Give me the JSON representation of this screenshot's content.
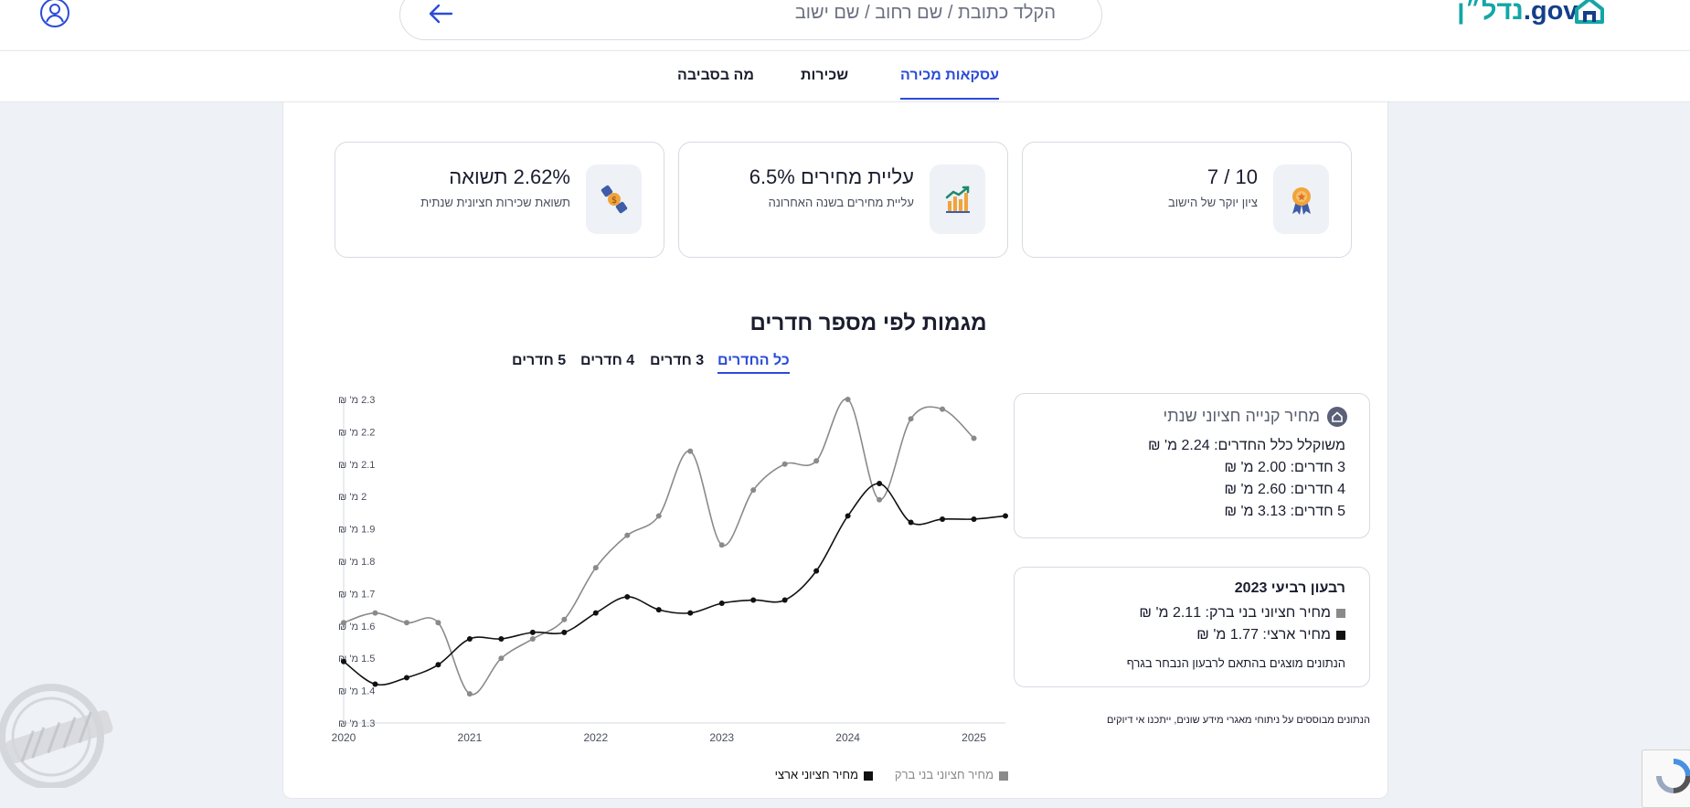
{
  "header": {
    "search_placeholder": "הקלד כתובת / שם רחוב / שם ישוב",
    "logo_hebrew": "נדל״ן",
    "logo_gov": ".gov"
  },
  "tabs": [
    {
      "label": "עסקאות מכירה",
      "active": true
    },
    {
      "label": "שכירות",
      "active": false
    },
    {
      "label": "מה בסביבה",
      "active": false
    }
  ],
  "stats": [
    {
      "title": "10 / 7",
      "subtitle": "ציון יוקר של הישוב",
      "icon": "award-ribbon-icon"
    },
    {
      "title": "עליית מחירים 6.5%",
      "subtitle": "עליית מחירים בשנה האחרונה",
      "icon": "chart-growth-icon"
    },
    {
      "title": "2.62% תשואה",
      "subtitle": "תשואת שכירות חציונית שנתית",
      "icon": "money-hand-icon"
    }
  ],
  "section_title": "מגמות לפי מספר חדרים",
  "room_tabs": [
    {
      "label": "כל החדרים",
      "active": true
    },
    {
      "label": "3 חדרים",
      "active": false
    },
    {
      "label": "4 חדרים",
      "active": false
    },
    {
      "label": "5 חדרים",
      "active": false
    }
  ],
  "annual_card": {
    "title": "מחיר קנייה חציוני שנתי",
    "lines": [
      "משוקלל כלל החדרים: 2.24 מ' ₪",
      "3 חדרים: 2.00 מ' ₪",
      "4 חדרים: 2.60 מ' ₪",
      "5 חדרים: 3.13 מ' ₪"
    ]
  },
  "quarter_card": {
    "title": "רבעון רביעי 2023",
    "city_price": "מחיר חציוני בני ברק: 2.11 מ' ₪",
    "national_price": "מחיר ארצי: 1.77 מ' ₪",
    "note": "הנתונים מוצגים בהתאם לרבעון הנבחר בגרף"
  },
  "disclaimer": "הנתונים מבוססים על ניתוחי מאגרי מידע שונים, ייתכנו אי דיוקים",
  "chart_data": {
    "type": "line",
    "y_unit_suffix": " מ' ₪",
    "ylim": [
      1.3,
      2.3
    ],
    "yticks": [
      1.3,
      1.4,
      1.5,
      1.6,
      1.7,
      1.8,
      1.9,
      2,
      2.1,
      2.2,
      2.3
    ],
    "xlim": [
      2020,
      2025.25
    ],
    "xticks": [
      2020,
      2021,
      2022,
      2023,
      2024,
      2025
    ],
    "grid": false,
    "legend_placement": "bottom",
    "series": [
      {
        "name": "מחיר חציוני בני ברק",
        "color": "#8a8a8a",
        "x": [
          2020,
          2020.25,
          2020.5,
          2020.75,
          2021,
          2021.25,
          2021.5,
          2021.75,
          2022,
          2022.25,
          2022.5,
          2022.75,
          2023,
          2023.25,
          2023.5,
          2023.75,
          2024,
          2024.25,
          2024.5,
          2024.75,
          2025
        ],
        "values": [
          1.61,
          1.64,
          1.61,
          1.61,
          1.39,
          1.5,
          1.56,
          1.62,
          1.78,
          1.88,
          1.94,
          2.14,
          1.85,
          2.02,
          2.1,
          2.11,
          2.3,
          1.99,
          2.24,
          2.27,
          2.18
        ]
      },
      {
        "name": "מחיר חציוני ארצי",
        "color": "#111111",
        "x": [
          2020,
          2020.25,
          2020.5,
          2020.75,
          2021,
          2021.25,
          2021.5,
          2021.75,
          2022,
          2022.25,
          2022.5,
          2022.75,
          2023,
          2023.25,
          2023.5,
          2023.75,
          2024,
          2024.25,
          2024.5,
          2024.75,
          2025,
          2025.25
        ],
        "values": [
          1.49,
          1.42,
          1.44,
          1.48,
          1.56,
          1.56,
          1.58,
          1.58,
          1.64,
          1.69,
          1.65,
          1.64,
          1.67,
          1.68,
          1.68,
          1.77,
          1.94,
          2.04,
          1.92,
          1.93,
          1.93,
          1.94
        ]
      }
    ]
  }
}
